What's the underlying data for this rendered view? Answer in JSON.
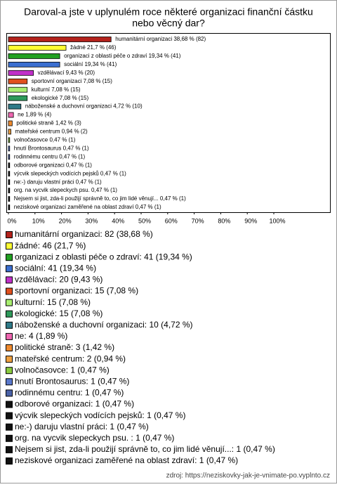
{
  "chart_data": {
    "type": "hbar",
    "title": [
      "Daroval-a jste v uplynulém roce některé organizaci finanční částku",
      "nebo věcný dar?"
    ],
    "categories": [
      "humanitární organizaci",
      "žádné",
      "organizaci z oblasti péče o zdraví",
      "sociální",
      "vzdělávací",
      "sportovní organizaci",
      "kulturní",
      "ekologické",
      "náboženské a duchovní organizaci",
      "ne",
      "politické straně",
      "mateřské centrum",
      "volnočasovce",
      "hnutí Brontosaurus",
      "rodinnému centru",
      "odborové organizaci",
      "výcvik slepeckých vodících pejsků",
      "ne:-) daruju vlastní práci",
      "org. na vycvik slepeckych psu.",
      "Nejsem si jist, zda-li použijí správně to, co jim lidé věnují...",
      "neziskové organizaci zaměřené na oblast zdraví"
    ],
    "values": [
      38.68,
      21.7,
      19.34,
      19.34,
      9.43,
      7.08,
      7.08,
      7.08,
      4.72,
      1.89,
      1.42,
      0.94,
      0.47,
      0.47,
      0.47,
      0.47,
      0.47,
      0.47,
      0.47,
      0.47,
      0.47
    ],
    "value_labels": [
      "humanitární organizaci 38,68 % (82)",
      "žádné 21,7 % (46)",
      "organizaci z oblasti péče o zdraví 19,34 % (41)",
      "sociální 19,34 % (41)",
      "vzdělávací 9,43 % (20)",
      "sportovní organizaci 7,08 % (15)",
      "kulturní 7,08 % (15)",
      "ekologické 7,08 % (15)",
      "náboženské a duchovní organizaci 4,72 % (10)",
      "ne 1,89 % (4)",
      "politické straně 1,42 % (3)",
      "mateřské centrum 0,94 % (2)",
      "volnočasovce 0,47 % (1)",
      "hnutí Brontosaurus 0,47 % (1)",
      "rodinnému centru 0,47 % (1)",
      "odborové organizaci 0,47 % (1)",
      "výcvik slepeckých vodících pejsků 0,47 % (1)",
      "ne:-) daruju vlastní práci 0,47 % (1)",
      "org. na vycvik slepeckych psu.  0,47 % (1)",
      "Nejsem si jist, zda-li použijí správně to, co jim lidé věnují... 0,47 % (1)",
      "neziskové organizaci zaměřené na oblast zdraví 0,47 % (1)"
    ],
    "legend_labels": [
      "humanitární organizaci: 82 (38,68 %)",
      "žádné: 46 (21,7 %)",
      "organizaci z oblasti péče o zdraví: 41 (19,34 %)",
      "sociální: 41 (19,34 %)",
      "vzdělávací: 20 (9,43 %)",
      "sportovní organizaci: 15 (7,08 %)",
      "kulturní: 15 (7,08 %)",
      "ekologické: 15 (7,08 %)",
      "náboženské a duchovní organizaci: 10 (4,72 %)",
      "ne: 4 (1,89 %)",
      "politické straně: 3 (1,42 %)",
      "mateřské centrum: 2 (0,94 %)",
      "volnočasovce: 1 (0,47 %)",
      "hnutí Brontosaurus: 1 (0,47 %)",
      "rodinnému centru: 1 (0,47 %)",
      "odborové organizaci: 1 (0,47 %)",
      "výcvik slepeckých vodících pejsků: 1 (0,47 %)",
      "ne:-) daruju vlastní práci: 1 (0,47 %)",
      "org. na vycvik slepeckych psu. : 1 (0,47 %)",
      "Nejsem si jist, zda-li použijí správně to, co jim lidé věnují...: 1 (0,47 %)",
      "neziskové organizaci zaměřené na oblast zdraví: 1 (0,47 %)"
    ],
    "colors": [
      "#b3221c",
      "#ffff33",
      "#22a022",
      "#3b6fd0",
      "#c030c8",
      "#e0501e",
      "#a8ee70",
      "#2e9a5a",
      "#2f7a88",
      "#ee66b0",
      "#ee8a2e",
      "#eea040",
      "#8acb40",
      "#5a78cc",
      "#4a62a8",
      "#111111",
      "#111111",
      "#111111",
      "#111111",
      "#111111",
      "#111111"
    ],
    "xlim": [
      0,
      100
    ],
    "xticks": [
      {
        "value": 0,
        "label": "0%"
      },
      {
        "value": 10,
        "label": "10%"
      },
      {
        "value": 20,
        "label": "20%"
      },
      {
        "value": 30,
        "label": "30%"
      },
      {
        "value": 40,
        "label": "40%"
      },
      {
        "value": 50,
        "label": "50%"
      },
      {
        "value": 60,
        "label": "60%"
      },
      {
        "value": 70,
        "label": "70%"
      },
      {
        "value": 80,
        "label": "80%"
      },
      {
        "value": 90,
        "label": "90%"
      },
      {
        "value": 100,
        "label": "100%"
      }
    ],
    "source": "zdroj: https://neziskovky-jak-je-vnimate-po.vyplnto.cz"
  }
}
